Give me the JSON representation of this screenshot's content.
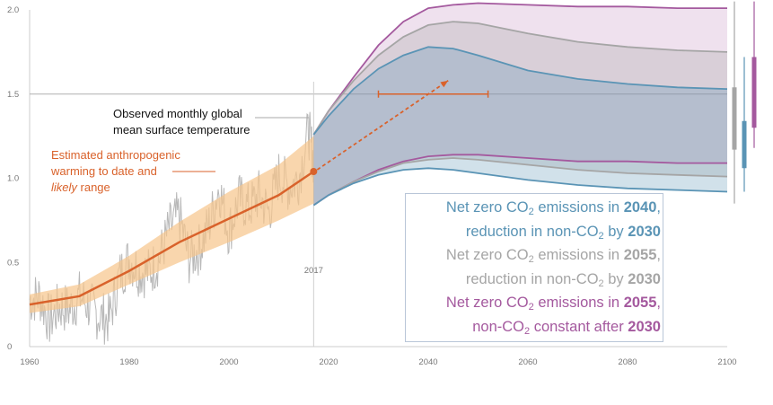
{
  "chart_data": {
    "type": "area",
    "xlim": [
      1960,
      2100
    ],
    "ylim": [
      0,
      2.0
    ],
    "x_ticks": [
      "1960",
      "1980",
      "2000",
      "2020",
      "2040",
      "2060",
      "2080",
      "2100"
    ],
    "y_ticks": [
      "0",
      "0.5",
      "1.0",
      "1.5",
      "2.0"
    ],
    "reference_line_y": 1.5,
    "marker_label": "2017",
    "marker_year": 2017,
    "observed": {
      "label": "Observed monthly global mean surface temperature",
      "color": "#b8b8b8",
      "x": [
        1960,
        1962,
        1964,
        1966,
        1968,
        1970,
        1972,
        1974,
        1976,
        1978,
        1980,
        1982,
        1984,
        1986,
        1988,
        1990,
        1992,
        1994,
        1996,
        1998,
        2000,
        2002,
        2004,
        2006,
        2008,
        2010,
        2012,
        2014,
        2016,
        2017
      ],
      "y": [
        0.28,
        0.3,
        0.15,
        0.24,
        0.22,
        0.3,
        0.24,
        0.18,
        0.16,
        0.42,
        0.52,
        0.45,
        0.44,
        0.52,
        0.7,
        0.78,
        0.52,
        0.58,
        0.72,
        0.95,
        0.68,
        0.88,
        0.82,
        0.9,
        0.8,
        1.02,
        0.95,
        1.0,
        1.28,
        1.1
      ]
    },
    "anthropogenic": {
      "label_line1": "Estimated anthropogenic",
      "label_line2": "warming to date and",
      "label_line3_italic": "likely",
      "label_line3_rest": " range",
      "color": "#d9622b",
      "range_color": "#f7c48a",
      "x": [
        1960,
        1970,
        1980,
        1990,
        2000,
        2010,
        2017
      ],
      "central": [
        0.25,
        0.3,
        0.45,
        0.62,
        0.76,
        0.9,
        1.04
      ],
      "lower": [
        0.2,
        0.24,
        0.37,
        0.5,
        0.62,
        0.75,
        0.85
      ],
      "upper": [
        0.31,
        0.37,
        0.54,
        0.74,
        0.92,
        1.08,
        1.25
      ]
    },
    "projection_x": [
      2017,
      2020,
      2025,
      2030,
      2035,
      2040,
      2045,
      2050,
      2060,
      2070,
      2080,
      2090,
      2100
    ],
    "series": [
      {
        "name_parts": [
          "Net zero CO",
          "2",
          " emissions in ",
          "2040",
          ","
        ],
        "name_parts2": [
          "reduction in non-CO",
          "2",
          " by ",
          "2030"
        ],
        "color": "#5a94b5",
        "upper": [
          1.26,
          1.37,
          1.53,
          1.65,
          1.73,
          1.78,
          1.77,
          1.73,
          1.64,
          1.59,
          1.56,
          1.54,
          1.53
        ],
        "lower": [
          0.84,
          0.9,
          0.97,
          1.02,
          1.05,
          1.06,
          1.05,
          1.03,
          0.99,
          0.96,
          0.94,
          0.93,
          0.92
        ],
        "range_bar": [
          1.06,
          1.34
        ]
      },
      {
        "name_parts": [
          "Net zero CO",
          "2",
          " emissions in ",
          "2055",
          ","
        ],
        "name_parts2": [
          "reduction in non-CO",
          "2",
          " by ",
          "2030"
        ],
        "color": "#a5a5a5",
        "upper": [
          1.26,
          1.4,
          1.58,
          1.73,
          1.84,
          1.91,
          1.93,
          1.92,
          1.86,
          1.81,
          1.78,
          1.76,
          1.75
        ],
        "lower": [
          0.84,
          0.9,
          0.98,
          1.04,
          1.09,
          1.11,
          1.12,
          1.11,
          1.08,
          1.05,
          1.03,
          1.02,
          1.01
        ],
        "range_bar": [
          1.17,
          1.54
        ]
      },
      {
        "name_parts": [
          "Net zero CO",
          "2",
          " emissions in ",
          "2055",
          ","
        ],
        "name_parts2": [
          "non-CO",
          "2",
          " constant after ",
          "2030"
        ],
        "color": "#a4599e",
        "upper": [
          1.26,
          1.4,
          1.6,
          1.79,
          1.93,
          2.01,
          2.03,
          2.04,
          2.03,
          2.02,
          2.02,
          2.01,
          2.01
        ],
        "lower": [
          0.84,
          0.9,
          0.98,
          1.05,
          1.1,
          1.13,
          1.14,
          1.14,
          1.12,
          1.1,
          1.1,
          1.09,
          1.09
        ],
        "range_bar": [
          1.3,
          1.72
        ]
      }
    ],
    "range_bar_outer": [
      {
        "color": "#a5a5a5",
        "range": [
          0.85,
          2.05
        ]
      },
      {
        "color": "#5a94b5",
        "range": [
          0.92,
          1.72
        ]
      },
      {
        "color": "#a4599e",
        "range": [
          1.18,
          2.15
        ]
      }
    ],
    "horizontal_range": {
      "x": [
        2030,
        2052
      ],
      "y": 1.5,
      "color": "#d9622b"
    },
    "arrow": {
      "from": [
        2017,
        1.04
      ],
      "to": [
        2044,
        1.58
      ],
      "color": "#d9622b"
    }
  },
  "legend": [
    {
      "color": "#5a94b5",
      "l1": [
        "Net zero CO",
        "2",
        " emissions in ",
        "2040",
        ","
      ],
      "l2": [
        "reduction in non-CO",
        "2",
        " by ",
        "2030"
      ]
    },
    {
      "color": "#a5a5a5",
      "l1": [
        "Net zero CO",
        "2",
        " emissions in ",
        "2055",
        ","
      ],
      "l2": [
        "reduction in non-CO",
        "2",
        " by ",
        "2030"
      ]
    },
    {
      "color": "#a4599e",
      "l1": [
        "Net zero CO",
        "2",
        " emissions in ",
        "2055",
        ","
      ],
      "l2": [
        "non-CO",
        "2",
        " constant after ",
        "2030"
      ]
    }
  ]
}
